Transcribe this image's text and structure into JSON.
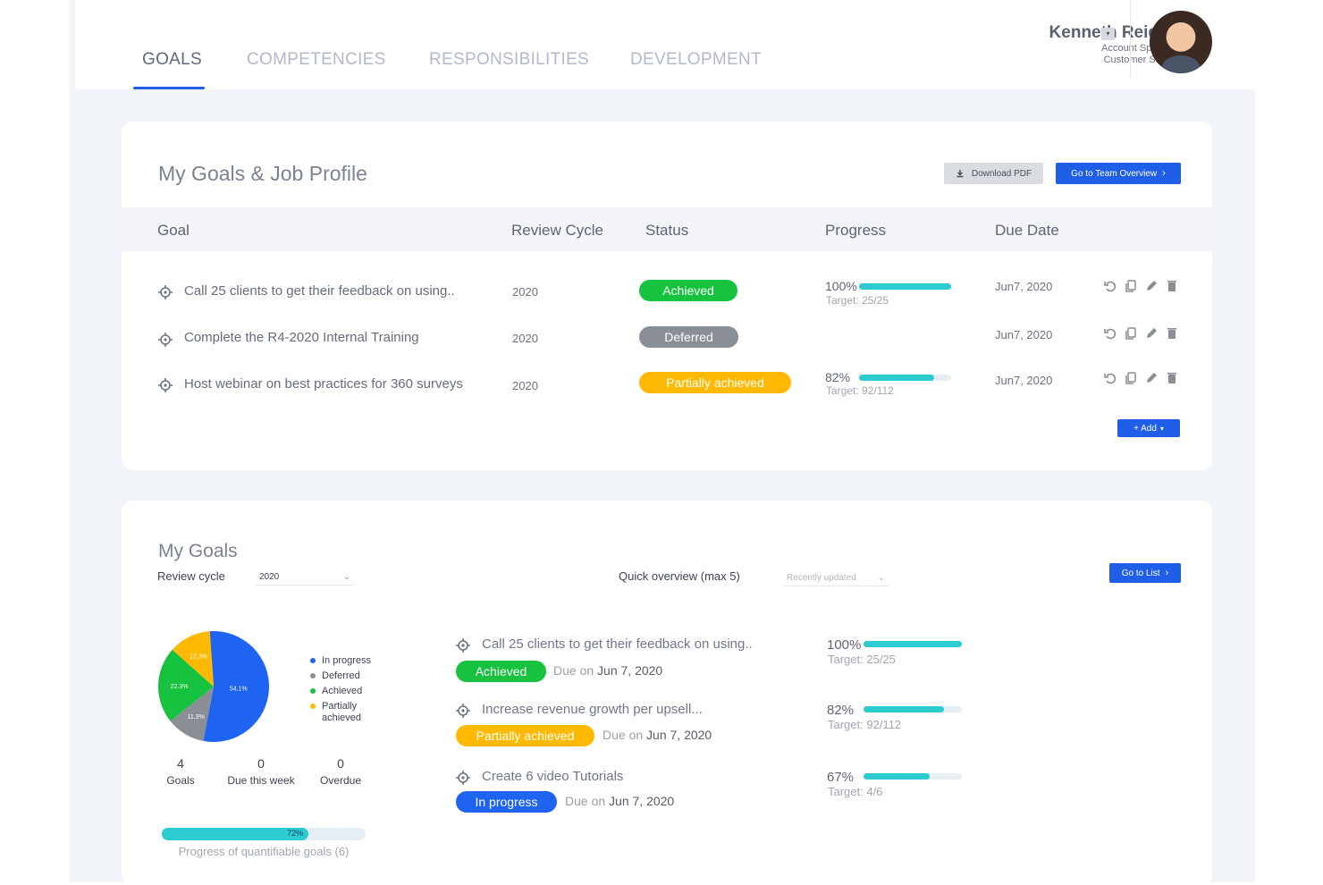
{
  "tabs": [
    "GOALS",
    "COMPETENCIES",
    "RESPONSIBILITIES",
    "DEVELOPMENT"
  ],
  "user": {
    "name": "Kenneth Reid",
    "role": "Account Specialist",
    "department": "Customer Service"
  },
  "profile": {
    "title": "My Goals & Job Profile",
    "download_label": "Download PDF",
    "team_label": "Go to Team Overview",
    "columns": {
      "goal": "Goal",
      "cycle": "Review Cycle",
      "status": "Status",
      "progress": "Progress",
      "due": "Due Date"
    },
    "rows": [
      {
        "goal": "Call 25 clients to get their feedback on using..",
        "cycle": "2020",
        "status": "Achieved",
        "pct": "100%",
        "fraction": 1.0,
        "target": "Target: 25/25",
        "due": "Jun7, 2020"
      },
      {
        "goal": "Complete the R4-2020 Internal Training",
        "cycle": "2020",
        "status": "Deferred",
        "pct": "",
        "fraction": null,
        "target": "",
        "due": "Jun7, 2020"
      },
      {
        "goal": "Host webinar on best practices for 360 surveys",
        "cycle": "2020",
        "status": "Partially achieved",
        "pct": "82%",
        "fraction": 0.82,
        "target": "Target: 92/112",
        "due": "Jun7, 2020"
      }
    ],
    "add_label": "+ Add"
  },
  "goals": {
    "title": "My Goals",
    "review_cycle_label": "Review cycle",
    "review_cycle_value": "2020",
    "quick_label": "Quick overview (max 5)",
    "sort_value": "Recently updated",
    "list_label": "Go to List",
    "legend": [
      {
        "label": "In progress",
        "color": "#1f64f0"
      },
      {
        "label": "Deferred",
        "color": "#8a8f96"
      },
      {
        "label": "Achieved",
        "color": "#16c23e"
      },
      {
        "label": "Partially achieved",
        "color": "#ffb900"
      }
    ],
    "stats": [
      {
        "value": "4",
        "label": "Goals"
      },
      {
        "value": "0",
        "label": "Due this week"
      },
      {
        "value": "0",
        "label": "Overdue"
      }
    ],
    "quant_progress_label": "72%",
    "quant_progress_fraction": 0.72,
    "quant_caption": "Progress of quantifiable goals (6)",
    "quick_items": [
      {
        "title": "Call 25 clients to get their feedback on using..",
        "status": "Achieved",
        "due_prefix": "Due on",
        "due_date": "Jun 7, 2020",
        "pct": "100%",
        "fraction": 1.0,
        "target": "Target: 25/25"
      },
      {
        "title": "Increase revenue growth per upsell...",
        "status": "Partially achieved",
        "due_prefix": "Due on",
        "due_date": "Jun 7, 2020",
        "pct": "82%",
        "fraction": 0.82,
        "target": "Target: 92/112"
      },
      {
        "title": "Create 6 video Tutorials",
        "status": "In progress",
        "due_prefix": "Due on",
        "due_date": "Jun 7, 2020",
        "pct": "67%",
        "fraction": 0.67,
        "target": "Target: 4/6"
      }
    ]
  },
  "chart_data": {
    "type": "pie",
    "categories": [
      "In progress",
      "Deferred",
      "Achieved",
      "Partially achieved"
    ],
    "values": [
      54.1,
      11.3,
      22.3,
      12.3
    ],
    "data_labels": [
      "54.1%",
      "11.3%",
      "22.3%",
      "12.3%"
    ],
    "colors": [
      "#1f64f0",
      "#8a8f96",
      "#16c23e",
      "#ffb900"
    ],
    "legend": "right"
  }
}
